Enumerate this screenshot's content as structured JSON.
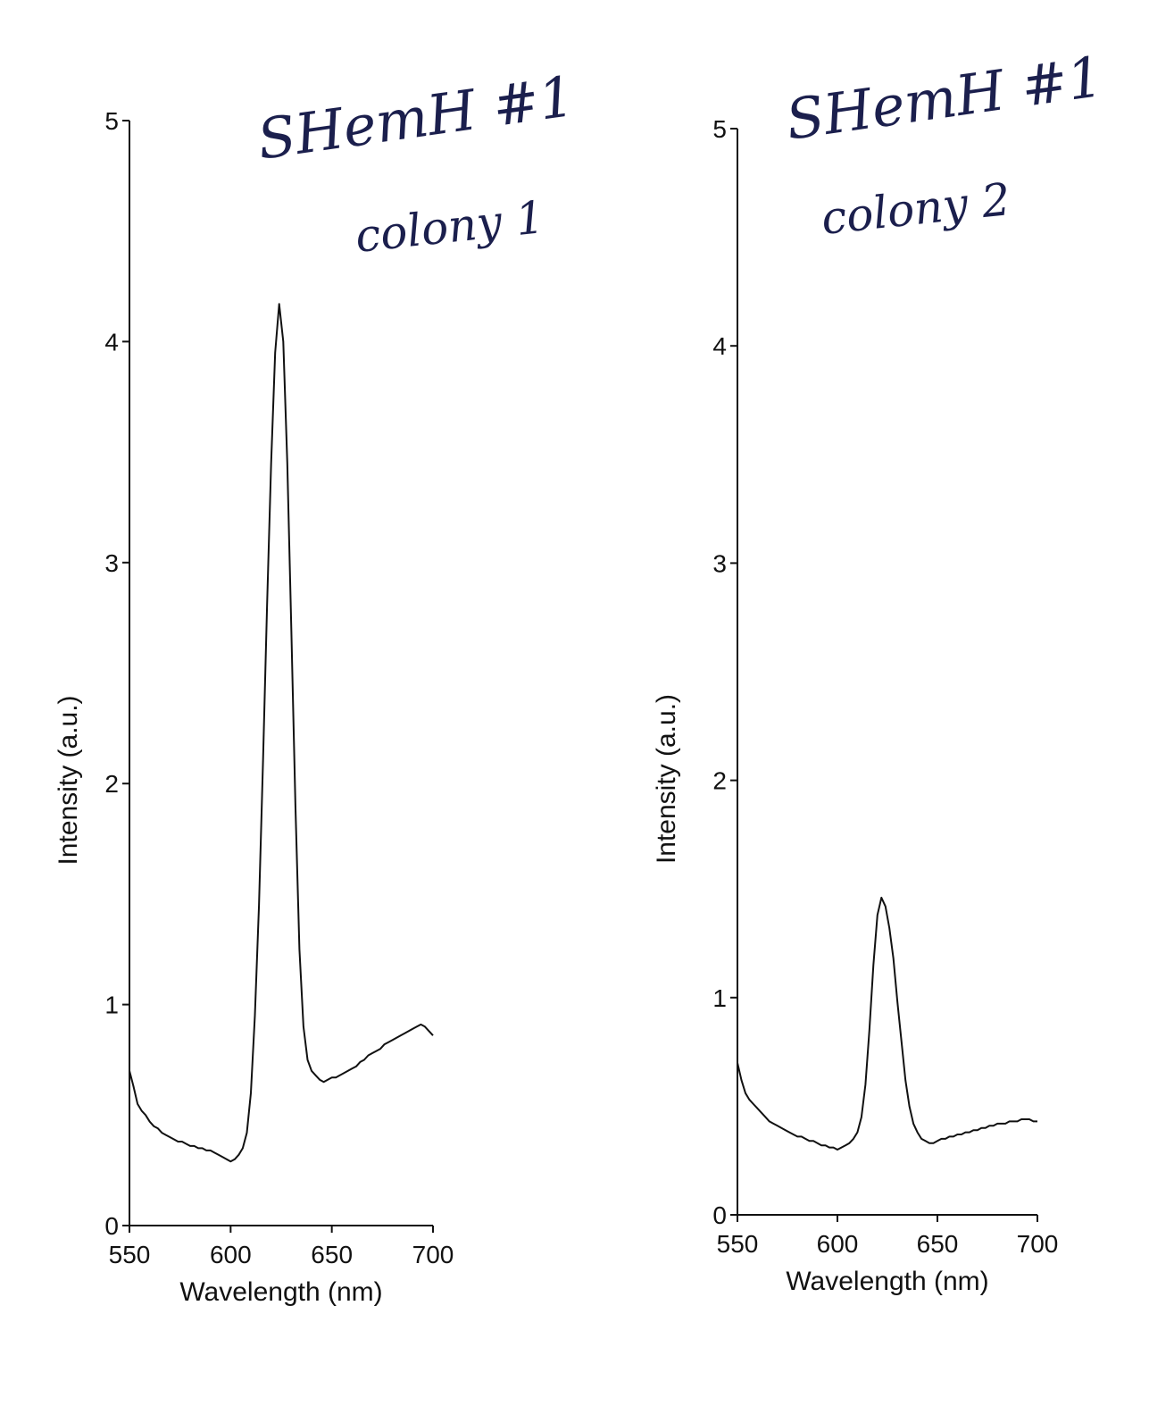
{
  "chart_data": [
    {
      "type": "line",
      "xlabel": "Wavelength (nm)",
      "ylabel": "Intensity (a.u.)",
      "xlim": [
        550,
        700
      ],
      "ylim": [
        0,
        5
      ],
      "xticks": [
        "550",
        "600",
        "650",
        "700"
      ],
      "yticks": [
        "0",
        "1",
        "2",
        "3",
        "4",
        "5"
      ],
      "annotations": [
        "SHemH #1",
        "colony 1"
      ],
      "series": [
        {
          "x": [
            550,
            552,
            554,
            556,
            558,
            560,
            562,
            564,
            566,
            568,
            570,
            572,
            574,
            576,
            578,
            580,
            582,
            584,
            586,
            588,
            590,
            592,
            594,
            596,
            598,
            600,
            602,
            604,
            606,
            608,
            610,
            612,
            614,
            616,
            618,
            620,
            622,
            624,
            626,
            628,
            630,
            632,
            634,
            636,
            638,
            640,
            642,
            644,
            646,
            648,
            650,
            652,
            654,
            656,
            658,
            660,
            662,
            664,
            666,
            668,
            670,
            672,
            674,
            676,
            678,
            680,
            682,
            684,
            686,
            688,
            690,
            692,
            694,
            696,
            698,
            700
          ],
          "y": [
            0.7,
            0.63,
            0.55,
            0.52,
            0.5,
            0.47,
            0.45,
            0.44,
            0.42,
            0.41,
            0.4,
            0.39,
            0.38,
            0.38,
            0.37,
            0.36,
            0.36,
            0.35,
            0.35,
            0.34,
            0.34,
            0.33,
            0.32,
            0.31,
            0.3,
            0.29,
            0.3,
            0.32,
            0.35,
            0.42,
            0.6,
            0.95,
            1.45,
            2.1,
            2.8,
            3.45,
            3.95,
            4.17,
            4.0,
            3.45,
            2.7,
            1.9,
            1.25,
            0.9,
            0.75,
            0.7,
            0.68,
            0.66,
            0.65,
            0.66,
            0.67,
            0.67,
            0.68,
            0.69,
            0.7,
            0.71,
            0.72,
            0.74,
            0.75,
            0.77,
            0.78,
            0.79,
            0.8,
            0.82,
            0.83,
            0.84,
            0.85,
            0.86,
            0.87,
            0.88,
            0.89,
            0.9,
            0.91,
            0.9,
            0.88,
            0.86
          ]
        }
      ]
    },
    {
      "type": "line",
      "xlabel": "Wavelength (nm)",
      "ylabel": "Intensity (a.u.)",
      "xlim": [
        550,
        700
      ],
      "ylim": [
        0,
        5
      ],
      "xticks": [
        "550",
        "600",
        "650",
        "700"
      ],
      "yticks": [
        "0",
        "1",
        "2",
        "3",
        "4",
        "5"
      ],
      "annotations": [
        "SHemH #1",
        "colony 2"
      ],
      "series": [
        {
          "x": [
            550,
            552,
            554,
            556,
            558,
            560,
            562,
            564,
            566,
            568,
            570,
            572,
            574,
            576,
            578,
            580,
            582,
            584,
            586,
            588,
            590,
            592,
            594,
            596,
            598,
            600,
            602,
            604,
            606,
            608,
            610,
            612,
            614,
            616,
            618,
            620,
            622,
            624,
            626,
            628,
            630,
            632,
            634,
            636,
            638,
            640,
            642,
            644,
            646,
            648,
            650,
            652,
            654,
            656,
            658,
            660,
            662,
            664,
            666,
            668,
            670,
            672,
            674,
            676,
            678,
            680,
            682,
            684,
            686,
            688,
            690,
            692,
            694,
            696,
            698,
            700
          ],
          "y": [
            0.7,
            0.62,
            0.56,
            0.53,
            0.51,
            0.49,
            0.47,
            0.45,
            0.43,
            0.42,
            0.41,
            0.4,
            0.39,
            0.38,
            0.37,
            0.36,
            0.36,
            0.35,
            0.34,
            0.34,
            0.33,
            0.32,
            0.32,
            0.31,
            0.31,
            0.3,
            0.31,
            0.32,
            0.33,
            0.35,
            0.38,
            0.45,
            0.6,
            0.85,
            1.15,
            1.38,
            1.46,
            1.42,
            1.32,
            1.18,
            0.98,
            0.8,
            0.62,
            0.5,
            0.42,
            0.38,
            0.35,
            0.34,
            0.33,
            0.33,
            0.34,
            0.35,
            0.35,
            0.36,
            0.36,
            0.37,
            0.37,
            0.38,
            0.38,
            0.39,
            0.39,
            0.4,
            0.4,
            0.41,
            0.41,
            0.42,
            0.42,
            0.42,
            0.43,
            0.43,
            0.43,
            0.44,
            0.44,
            0.44,
            0.43,
            0.43
          ]
        }
      ]
    }
  ]
}
